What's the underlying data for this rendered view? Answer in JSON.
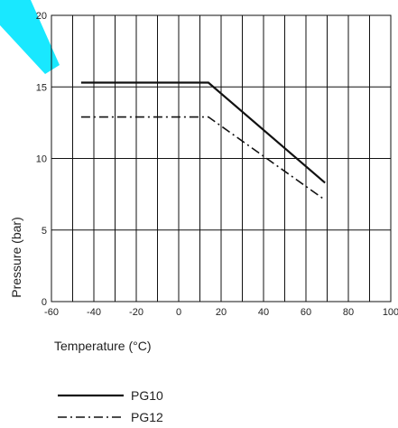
{
  "chart_data": {
    "type": "line",
    "xlabel": "Temperature (°C)",
    "ylabel": "Pressure (bar)",
    "xlim": [
      -60,
      100
    ],
    "ylim": [
      0,
      20
    ],
    "x_ticks": [
      -60,
      -40,
      -20,
      0,
      20,
      40,
      60,
      80,
      100
    ],
    "y_ticks": [
      0,
      5,
      10,
      15,
      20
    ],
    "grid": true,
    "legend_position": "bottom-left",
    "series": [
      {
        "name": "PG10",
        "style": "solid",
        "x": [
          -46,
          14,
          69
        ],
        "y": [
          15.3,
          15.3,
          8.3
        ]
      },
      {
        "name": "PG12",
        "style": "dash-dot",
        "x": [
          -46,
          14,
          69
        ],
        "y": [
          12.9,
          12.9,
          7.1
        ]
      }
    ]
  },
  "colors": {
    "line": "#111111",
    "grid": "#111111",
    "accent": "#00e5ff"
  }
}
